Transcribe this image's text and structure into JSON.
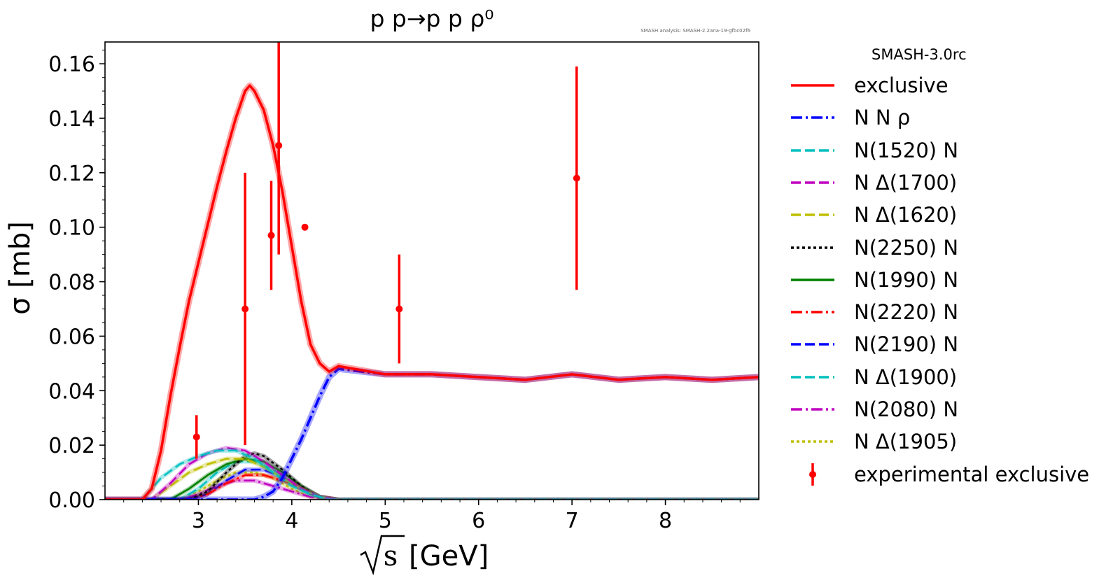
{
  "chart_data": {
    "type": "line",
    "title": "p p→p p ρ⁰",
    "watermark": "SMASH analysis: SMASH-2.2ana-19-gfbc02f6",
    "xlabel_sym": "s",
    "xlabel_unit": "[GeV]",
    "ylabel": "σ [mb]",
    "xlim": [
      2.0,
      9.0
    ],
    "ylim": [
      0.0,
      0.168
    ],
    "xticks": [
      3,
      4,
      5,
      6,
      7,
      8
    ],
    "xtick_labels": [
      "3",
      "4",
      "5",
      "6",
      "7",
      "8"
    ],
    "yticks": [
      0.0,
      0.02,
      0.04,
      0.06,
      0.08,
      0.1,
      0.12,
      0.14,
      0.16
    ],
    "ytick_labels": [
      "0.00",
      "0.02",
      "0.04",
      "0.06",
      "0.08",
      "0.10",
      "0.12",
      "0.14",
      "0.16"
    ],
    "legend_title": "SMASH-3.0rc",
    "series": [
      {
        "name": "exclusive",
        "color": "#ff0000",
        "style": "solid",
        "x": [
          2.0,
          2.4,
          2.5,
          2.6,
          2.7,
          2.8,
          2.9,
          3.0,
          3.1,
          3.2,
          3.3,
          3.4,
          3.5,
          3.55,
          3.6,
          3.7,
          3.8,
          3.9,
          4.0,
          4.1,
          4.2,
          4.3,
          4.4,
          4.5,
          5.0,
          5.5,
          6.0,
          6.5,
          7.0,
          7.5,
          8.0,
          8.5,
          9.0
        ],
        "y": [
          0.0,
          0.0,
          0.004,
          0.018,
          0.038,
          0.056,
          0.073,
          0.087,
          0.101,
          0.115,
          0.128,
          0.14,
          0.15,
          0.152,
          0.15,
          0.143,
          0.13,
          0.113,
          0.093,
          0.073,
          0.057,
          0.05,
          0.047,
          0.049,
          0.046,
          0.046,
          0.045,
          0.044,
          0.046,
          0.044,
          0.045,
          0.044,
          0.045
        ]
      },
      {
        "name": "N N ρ",
        "color": "#0000ff",
        "style": "dashdot",
        "x": [
          2.0,
          3.6,
          3.7,
          3.8,
          3.9,
          4.0,
          4.1,
          4.2,
          4.3,
          4.4,
          4.5,
          5.0,
          5.5,
          6.0,
          6.5,
          7.0,
          7.5,
          8.0,
          8.5,
          9.0
        ],
        "y": [
          0.0,
          0.0,
          0.001,
          0.003,
          0.008,
          0.015,
          0.022,
          0.03,
          0.038,
          0.045,
          0.048,
          0.046,
          0.046,
          0.045,
          0.044,
          0.046,
          0.044,
          0.045,
          0.044,
          0.045
        ]
      },
      {
        "name": "N(1520) N",
        "color": "#00bfbf",
        "style": "dashed",
        "x": [
          2.0,
          2.4,
          2.6,
          2.8,
          3.0,
          3.2,
          3.4,
          3.6,
          3.8,
          4.0,
          4.2,
          4.4,
          9.0
        ],
        "y": [
          0.0,
          0.0,
          0.008,
          0.013,
          0.016,
          0.018,
          0.018,
          0.015,
          0.01,
          0.005,
          0.002,
          0.0,
          0.0
        ]
      },
      {
        "name": "N Δ(1700)",
        "color": "#bf00bf",
        "style": "dashed",
        "x": [
          2.0,
          2.5,
          2.7,
          2.9,
          3.1,
          3.3,
          3.5,
          3.7,
          3.9,
          4.1,
          4.3,
          4.5,
          9.0
        ],
        "y": [
          0.0,
          0.0,
          0.006,
          0.013,
          0.017,
          0.019,
          0.018,
          0.014,
          0.009,
          0.004,
          0.001,
          0.0,
          0.0
        ]
      },
      {
        "name": "N Δ(1620)",
        "color": "#bfbf00",
        "style": "dashed",
        "x": [
          2.0,
          2.5,
          2.7,
          2.9,
          3.1,
          3.3,
          3.5,
          3.7,
          3.9,
          4.1,
          4.3,
          4.5,
          9.0
        ],
        "y": [
          0.0,
          0.0,
          0.005,
          0.01,
          0.013,
          0.015,
          0.015,
          0.012,
          0.008,
          0.004,
          0.001,
          0.0,
          0.0
        ]
      },
      {
        "name": "N(2250) N",
        "color": "#000000",
        "style": "dotted",
        "x": [
          2.0,
          2.9,
          3.1,
          3.3,
          3.5,
          3.6,
          3.7,
          3.9,
          4.1,
          4.3,
          4.5,
          9.0
        ],
        "y": [
          0.0,
          0.0,
          0.003,
          0.01,
          0.016,
          0.017,
          0.016,
          0.011,
          0.005,
          0.001,
          0.0,
          0.0
        ]
      },
      {
        "name": "N(1990) N",
        "color": "#008000",
        "style": "solid",
        "x": [
          2.0,
          2.7,
          2.9,
          3.1,
          3.3,
          3.5,
          3.7,
          3.9,
          4.1,
          4.3,
          4.5,
          9.0
        ],
        "y": [
          0.0,
          0.0,
          0.004,
          0.009,
          0.013,
          0.015,
          0.014,
          0.01,
          0.005,
          0.001,
          0.0,
          0.0
        ]
      },
      {
        "name": "N(2220) N",
        "color": "#ff0000",
        "style": "dashdot",
        "x": [
          2.0,
          2.9,
          3.1,
          3.3,
          3.5,
          3.7,
          3.9,
          4.1,
          4.3,
          4.5,
          9.0
        ],
        "y": [
          0.0,
          0.0,
          0.002,
          0.006,
          0.009,
          0.009,
          0.007,
          0.004,
          0.001,
          0.0,
          0.0
        ]
      },
      {
        "name": "N(2190) N",
        "color": "#0000ff",
        "style": "dashed",
        "x": [
          2.0,
          2.9,
          3.1,
          3.3,
          3.5,
          3.7,
          3.9,
          4.1,
          4.3,
          4.5,
          9.0
        ],
        "y": [
          0.0,
          0.0,
          0.002,
          0.007,
          0.011,
          0.011,
          0.008,
          0.004,
          0.001,
          0.0,
          0.0
        ]
      },
      {
        "name": "N Δ(1900)",
        "color": "#00bfbf",
        "style": "dashed",
        "x": [
          2.0,
          2.8,
          3.0,
          3.2,
          3.4,
          3.6,
          3.8,
          4.0,
          4.2,
          4.4,
          9.0
        ],
        "y": [
          0.0,
          0.0,
          0.004,
          0.01,
          0.014,
          0.014,
          0.011,
          0.006,
          0.002,
          0.0,
          0.0
        ]
      },
      {
        "name": "N(2080) N",
        "color": "#bf00bf",
        "style": "dashdot",
        "x": [
          2.0,
          2.8,
          3.0,
          3.2,
          3.4,
          3.6,
          3.8,
          4.0,
          4.2,
          4.4,
          9.0
        ],
        "y": [
          0.0,
          0.0,
          0.002,
          0.005,
          0.007,
          0.007,
          0.005,
          0.003,
          0.001,
          0.0,
          0.0
        ]
      },
      {
        "name": "N Δ(1905)",
        "color": "#bfbf00",
        "style": "dotted",
        "x": [
          2.0,
          2.8,
          3.0,
          3.2,
          3.4,
          3.6,
          3.8,
          4.0,
          4.2,
          4.4,
          9.0
        ],
        "y": [
          0.0,
          0.0,
          0.003,
          0.007,
          0.01,
          0.01,
          0.008,
          0.004,
          0.001,
          0.0,
          0.0
        ]
      }
    ],
    "experimental": {
      "name": "experimental exclusive",
      "color": "#ff0000",
      "points": [
        {
          "x": 2.98,
          "y": 0.023,
          "ylo": 0.015,
          "yhi": 0.031
        },
        {
          "x": 3.5,
          "y": 0.07,
          "ylo": 0.02,
          "yhi": 0.12
        },
        {
          "x": 3.78,
          "y": 0.097,
          "ylo": 0.077,
          "yhi": 0.117
        },
        {
          "x": 3.86,
          "y": 0.13,
          "ylo": 0.09,
          "yhi": 0.17
        },
        {
          "x": 4.14,
          "y": 0.1,
          "ylo": 0.1,
          "yhi": 0.1
        },
        {
          "x": 5.15,
          "y": 0.07,
          "ylo": 0.05,
          "yhi": 0.09
        },
        {
          "x": 7.05,
          "y": 0.118,
          "ylo": 0.077,
          "yhi": 0.159
        }
      ]
    }
  }
}
